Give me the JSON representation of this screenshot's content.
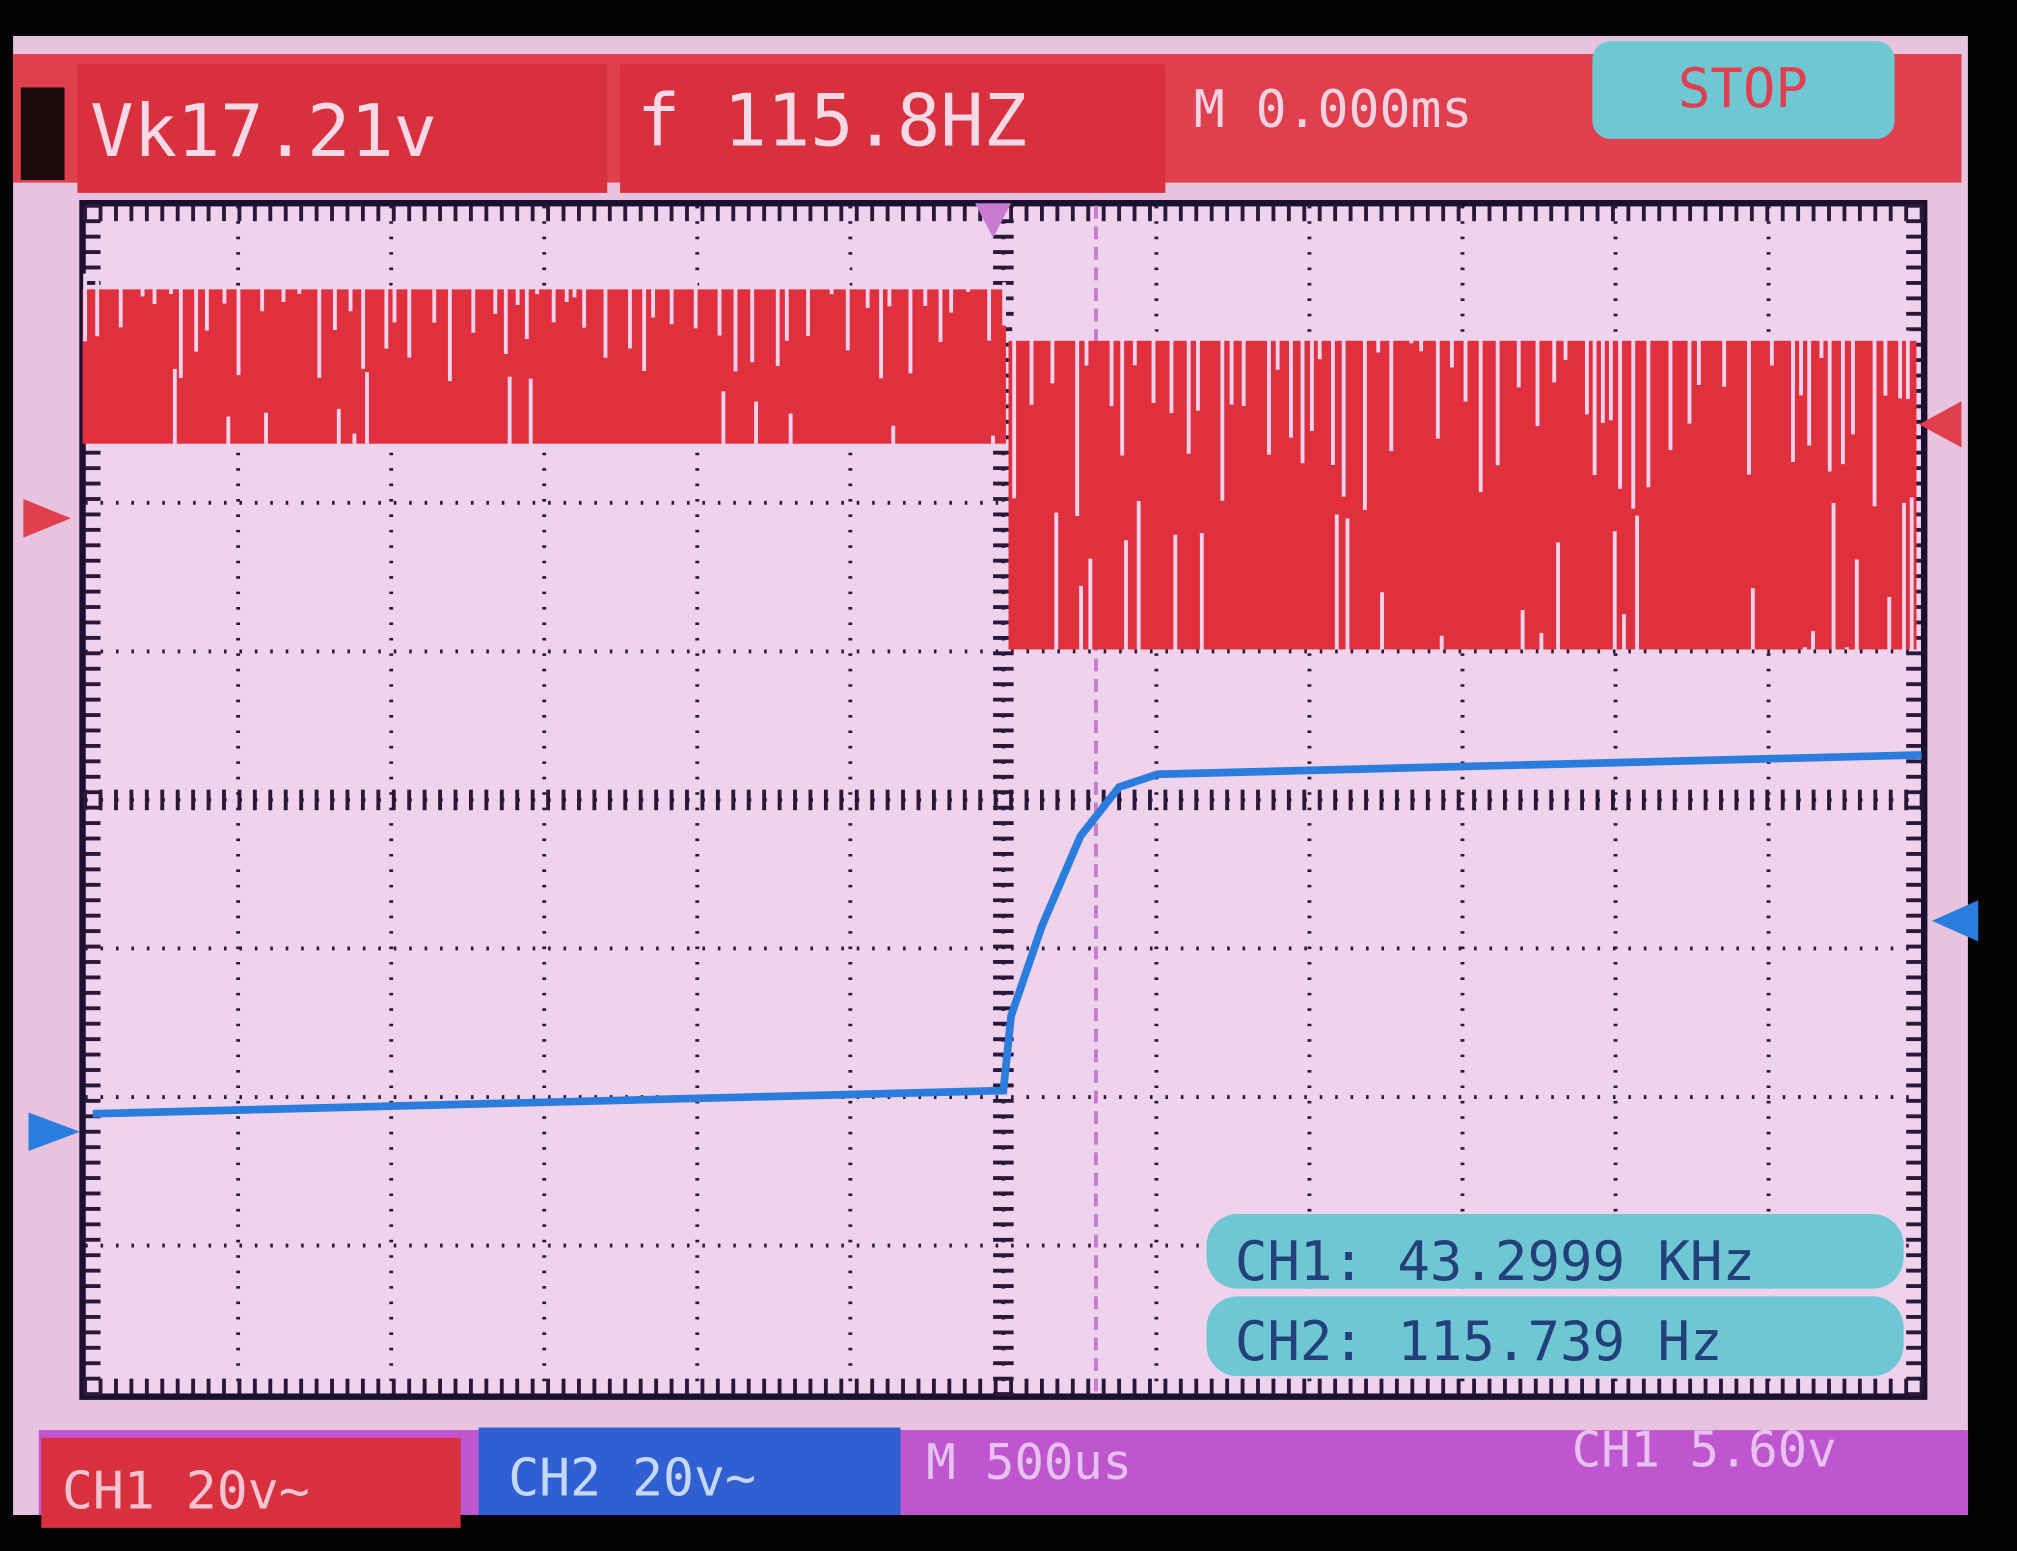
{
  "status_bar": {
    "peak_voltage": "Vk17.21v",
    "frequency": "f 115.8HZ",
    "time_offset": "M 0.000ms",
    "run_state": "STOP"
  },
  "measurements": [
    "CH1: 43.2999 KHz",
    "CH2: 115.739 Hz"
  ],
  "footer": {
    "ch1_scale": "CH1 20v~",
    "ch2_scale": "CH2 20v~",
    "timebase": "M 500us",
    "trigger": "CH1 5.60v"
  }
}
